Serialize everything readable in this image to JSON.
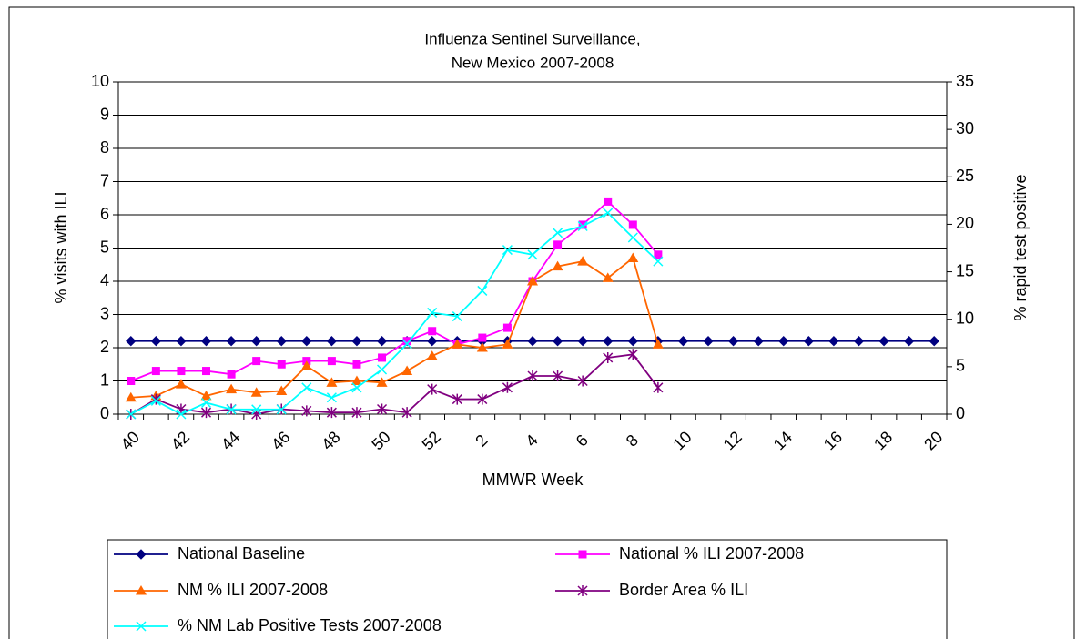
{
  "chart_data": {
    "type": "line",
    "title": [
      "Influenza Sentinel Surveillance,",
      "New Mexico 2007-2008"
    ],
    "x_label": "MMWR Week",
    "y_label": "% visits with ILI",
    "y2_label": "% rapid test positive",
    "categories": [
      "40",
      null,
      "42",
      null,
      "44",
      null,
      "46",
      null,
      "48",
      null,
      "50",
      null,
      "52",
      null,
      "2",
      null,
      "4",
      null,
      "6",
      null,
      "8",
      null,
      "10",
      null,
      "12",
      null,
      "14",
      null,
      "16",
      null,
      "18",
      null,
      "20"
    ],
    "ylim": [
      0,
      10
    ],
    "yticks": [
      0,
      1,
      2,
      3,
      4,
      5,
      6,
      7,
      8,
      9,
      10
    ],
    "y2lim": [
      0,
      35
    ],
    "y2ticks": [
      0,
      5,
      10,
      15,
      20,
      25,
      30,
      35
    ],
    "grid": true,
    "legend": "bottom",
    "series": [
      {
        "name": "National Baseline",
        "color": "#000080",
        "marker": "diamond",
        "values": [
          2.2,
          2.2,
          2.2,
          2.2,
          2.2,
          2.2,
          2.2,
          2.2,
          2.2,
          2.2,
          2.2,
          2.2,
          2.2,
          2.2,
          2.2,
          2.2,
          2.2,
          2.2,
          2.2,
          2.2,
          2.2,
          2.2,
          2.2,
          2.2,
          2.2,
          2.2,
          2.2,
          2.2,
          2.2,
          2.2,
          2.2,
          2.2,
          2.2
        ]
      },
      {
        "name": "National % ILI 2007-2008",
        "color": "#ff00ff",
        "marker": "square",
        "values": [
          1.0,
          1.3,
          1.3,
          1.3,
          1.2,
          1.6,
          1.5,
          1.6,
          1.6,
          1.5,
          1.7,
          2.2,
          2.5,
          2.1,
          2.3,
          2.6,
          4.0,
          5.1,
          5.7,
          6.4,
          5.7,
          4.8,
          null,
          null,
          null,
          null,
          null,
          null,
          null,
          null,
          null,
          null,
          null
        ]
      },
      {
        "name": "NM % ILI 2007-2008",
        "color": "#ff6600",
        "marker": "triangle",
        "values": [
          0.5,
          0.55,
          0.9,
          0.55,
          0.75,
          0.65,
          0.7,
          1.45,
          0.95,
          1.0,
          0.95,
          1.3,
          1.75,
          2.1,
          2.0,
          2.1,
          4.0,
          4.45,
          4.6,
          4.1,
          4.7,
          2.1,
          null,
          null,
          null,
          null,
          null,
          null,
          null,
          null,
          null,
          null,
          null
        ]
      },
      {
        "name": "Border Area % ILI",
        "color": "#800080",
        "marker": "star",
        "values": [
          0.0,
          0.45,
          0.15,
          0.05,
          0.15,
          0.0,
          0.15,
          0.1,
          0.05,
          0.05,
          0.15,
          0.05,
          0.75,
          0.45,
          0.45,
          0.8,
          1.15,
          1.15,
          1.0,
          1.7,
          1.8,
          0.8,
          null,
          null,
          null,
          null,
          null,
          null,
          null,
          null,
          null,
          null,
          null
        ]
      },
      {
        "name": "% NM Lab Positive Tests 2007-2008",
        "color": "#00ffff",
        "marker": "x",
        "axis": "y2",
        "values": [
          0.0,
          1.4,
          0.0,
          1.2,
          0.5,
          0.5,
          0.5,
          2.8,
          1.75,
          2.8,
          4.7,
          7.4,
          10.7,
          10.3,
          13.0,
          17.3,
          16.8,
          19.1,
          19.8,
          21.2,
          18.6,
          16.1,
          null,
          null,
          null,
          null,
          null,
          null,
          null,
          null,
          null,
          null,
          null
        ]
      }
    ]
  }
}
